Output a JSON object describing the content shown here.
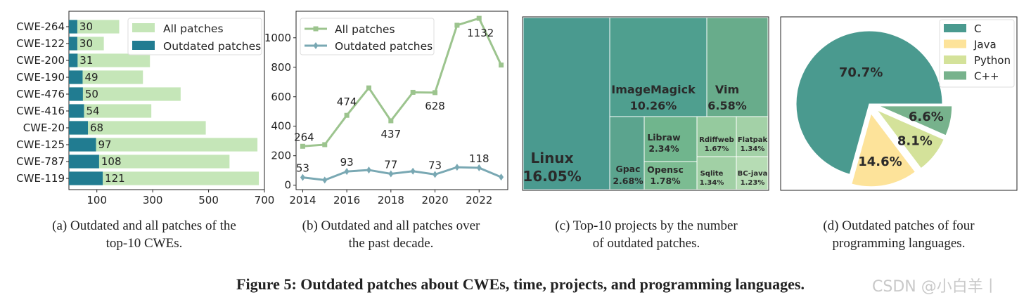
{
  "figure_title": "Figure 5: Outdated patches about CWEs, time, projects, and programming languages.",
  "watermark": "CSDN @小白羊丨",
  "captions": {
    "a": [
      "(a) Outdated and all patches of the",
      "top-10 CWEs."
    ],
    "b": [
      "(b) Outdated and all patches over",
      "the past decade."
    ],
    "c": [
      "(c) Top-10 projects by the number",
      "of outdated patches."
    ],
    "d": [
      "(d) Outdated patches of four",
      "programming languages."
    ]
  },
  "colors": {
    "all_bar": "#c5e6b8",
    "outdated_bar": "#217c91",
    "all_line": "#9cc48e",
    "outdated_line": "#79a8b3",
    "pie_c": "#4a9a8f",
    "pie_java": "#fde39a",
    "pie_python": "#d4e29a",
    "pie_cpp": "#77b28c"
  },
  "chart_data": [
    {
      "id": "a",
      "type": "bar",
      "orientation": "horizontal",
      "categories": [
        "CWE-264",
        "CWE-122",
        "CWE-200",
        "CWE-190",
        "CWE-476",
        "CWE-416",
        "CWE-20",
        "CWE-125",
        "CWE-787",
        "CWE-119"
      ],
      "series": [
        {
          "name": "All patches",
          "values": [
            180,
            125,
            290,
            265,
            400,
            295,
            490,
            675,
            575,
            680
          ]
        },
        {
          "name": "Outdated patches",
          "values": [
            30,
            30,
            31,
            49,
            50,
            54,
            68,
            97,
            108,
            121
          ]
        }
      ],
      "data_labels": [
        "30",
        "30",
        "31",
        "49",
        "50",
        "54",
        "68",
        "97",
        "108",
        "121"
      ],
      "xticks": [
        "100",
        "300",
        "500",
        "700"
      ],
      "xtick_values": [
        100,
        300,
        500,
        700
      ],
      "xlim": [
        0,
        700
      ],
      "legend": "top-right"
    },
    {
      "id": "b",
      "type": "line",
      "x": [
        2014,
        2015,
        2016,
        2017,
        2018,
        2019,
        2020,
        2021,
        2022,
        2023
      ],
      "series": [
        {
          "name": "All patches",
          "values": [
            264,
            275,
            474,
            660,
            437,
            630,
            628,
            1085,
            1132,
            815
          ],
          "marker": "square"
        },
        {
          "name": "Outdated patches",
          "values": [
            53,
            35,
            93,
            103,
            77,
            95,
            73,
            122,
            118,
            55
          ],
          "marker": "diamond"
        }
      ],
      "annotations": [
        {
          "x": 2014,
          "y": 264,
          "text": "264"
        },
        {
          "x": 2016,
          "y": 474,
          "text": "474"
        },
        {
          "x": 2018,
          "y": 437,
          "text": "437"
        },
        {
          "x": 2020,
          "y": 628,
          "text": "628"
        },
        {
          "x": 2022,
          "y": 1132,
          "text": "1132"
        },
        {
          "x": 2014,
          "y": 53,
          "text": "53"
        },
        {
          "x": 2016,
          "y": 93,
          "text": "93"
        },
        {
          "x": 2018,
          "y": 77,
          "text": "77"
        },
        {
          "x": 2020,
          "y": 73,
          "text": "73"
        },
        {
          "x": 2022,
          "y": 118,
          "text": "118"
        }
      ],
      "xticks": [
        "2014",
        "2016",
        "2018",
        "2020",
        "2022"
      ],
      "yticks": [
        "0",
        "200",
        "400",
        "600",
        "800",
        "1000"
      ],
      "ytick_values": [
        0,
        200,
        400,
        600,
        800,
        1000
      ],
      "xlim": [
        2013.7,
        2023.3
      ],
      "ylim": [
        -30,
        1180
      ],
      "legend": "top-left"
    },
    {
      "id": "c",
      "type": "treemap",
      "items": [
        {
          "name": "Linux",
          "pct": "16.05%",
          "value": 16.05
        },
        {
          "name": "ImageMagick",
          "pct": "10.26%",
          "value": 10.26
        },
        {
          "name": "Vim",
          "pct": "6.58%",
          "value": 6.58
        },
        {
          "name": "Gpac",
          "pct": "2.68%",
          "value": 2.68
        },
        {
          "name": "Libraw",
          "pct": "2.34%",
          "value": 2.34
        },
        {
          "name": "Opensc",
          "pct": "1.78%",
          "value": 1.78
        },
        {
          "name": "Rdiffweb",
          "pct": "1.67%",
          "value": 1.67
        },
        {
          "name": "Flatpak",
          "pct": "1.34%",
          "value": 1.34
        },
        {
          "name": "Sqlite",
          "pct": "1.34%",
          "value": 1.34
        },
        {
          "name": "BC-java",
          "pct": "1.23%",
          "value": 1.23
        }
      ]
    },
    {
      "id": "d",
      "type": "pie",
      "labels": [
        "C",
        "Java",
        "Python",
        "C++"
      ],
      "values": [
        70.7,
        14.6,
        8.1,
        6.6
      ],
      "pct_labels": [
        "70.7%",
        "14.6%",
        "8.1%",
        "6.6%"
      ],
      "explode": [
        0,
        1,
        1,
        1
      ],
      "legend": "top-right"
    }
  ]
}
